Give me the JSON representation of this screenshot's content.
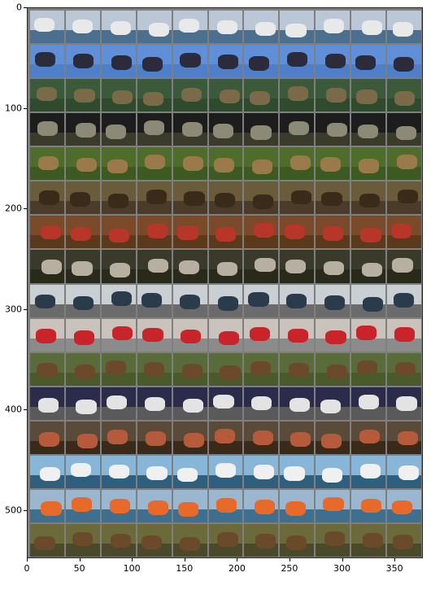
{
  "axes": {
    "y_ticks": [
      "0",
      "100",
      "200",
      "300",
      "400",
      "500"
    ],
    "x_ticks": [
      "0",
      "50",
      "100",
      "150",
      "200",
      "250",
      "300",
      "350"
    ]
  },
  "grid": {
    "rows": 16,
    "cols": 11,
    "row_themes": [
      {
        "sky": "#b9c7d6",
        "ground": "#4b6f8f",
        "obj": "#e9e9e9"
      },
      {
        "sky": "#5f8fd8",
        "ground": "#4f7fc8",
        "obj": "#2b2b3b"
      },
      {
        "sky": "#3b5a3a",
        "ground": "#2f4a2c",
        "obj": "#7a6a4a"
      },
      {
        "sky": "#1d1d1d",
        "ground": "#3a3b2a",
        "obj": "#8c8a76"
      },
      {
        "sky": "#4f6d2a",
        "ground": "#3d5a22",
        "obj": "#9a7a4a"
      },
      {
        "sky": "#6a5b3b",
        "ground": "#4a3b2a",
        "obj": "#3a2a1a"
      },
      {
        "sky": "#7a4a2a",
        "ground": "#5a3a1a",
        "obj": "#b8352a"
      },
      {
        "sky": "#3a3a2a",
        "ground": "#2a2a1a",
        "obj": "#b7b0a0"
      },
      {
        "sky": "#c9cfd2",
        "ground": "#6b6b6b",
        "obj": "#2a3b4b"
      },
      {
        "sky": "#c9c2bd",
        "ground": "#8b8b8b",
        "obj": "#c8242a"
      },
      {
        "sky": "#5a6b3a",
        "ground": "#4a5a2a",
        "obj": "#6a4a2a"
      },
      {
        "sky": "#2b2b4b",
        "ground": "#5a5a5a",
        "obj": "#e3e3e3"
      },
      {
        "sky": "#5a4a3a",
        "ground": "#3a2a1a",
        "obj": "#b55a3a"
      },
      {
        "sky": "#87b6d8",
        "ground": "#2f5f7f",
        "obj": "#f0f0f0"
      },
      {
        "sky": "#9bb6cf",
        "ground": "#3f6f8f",
        "obj": "#e86a2a"
      },
      {
        "sky": "#6a6a3a",
        "ground": "#4a4a2a",
        "obj": "#6a4a2a"
      }
    ]
  }
}
